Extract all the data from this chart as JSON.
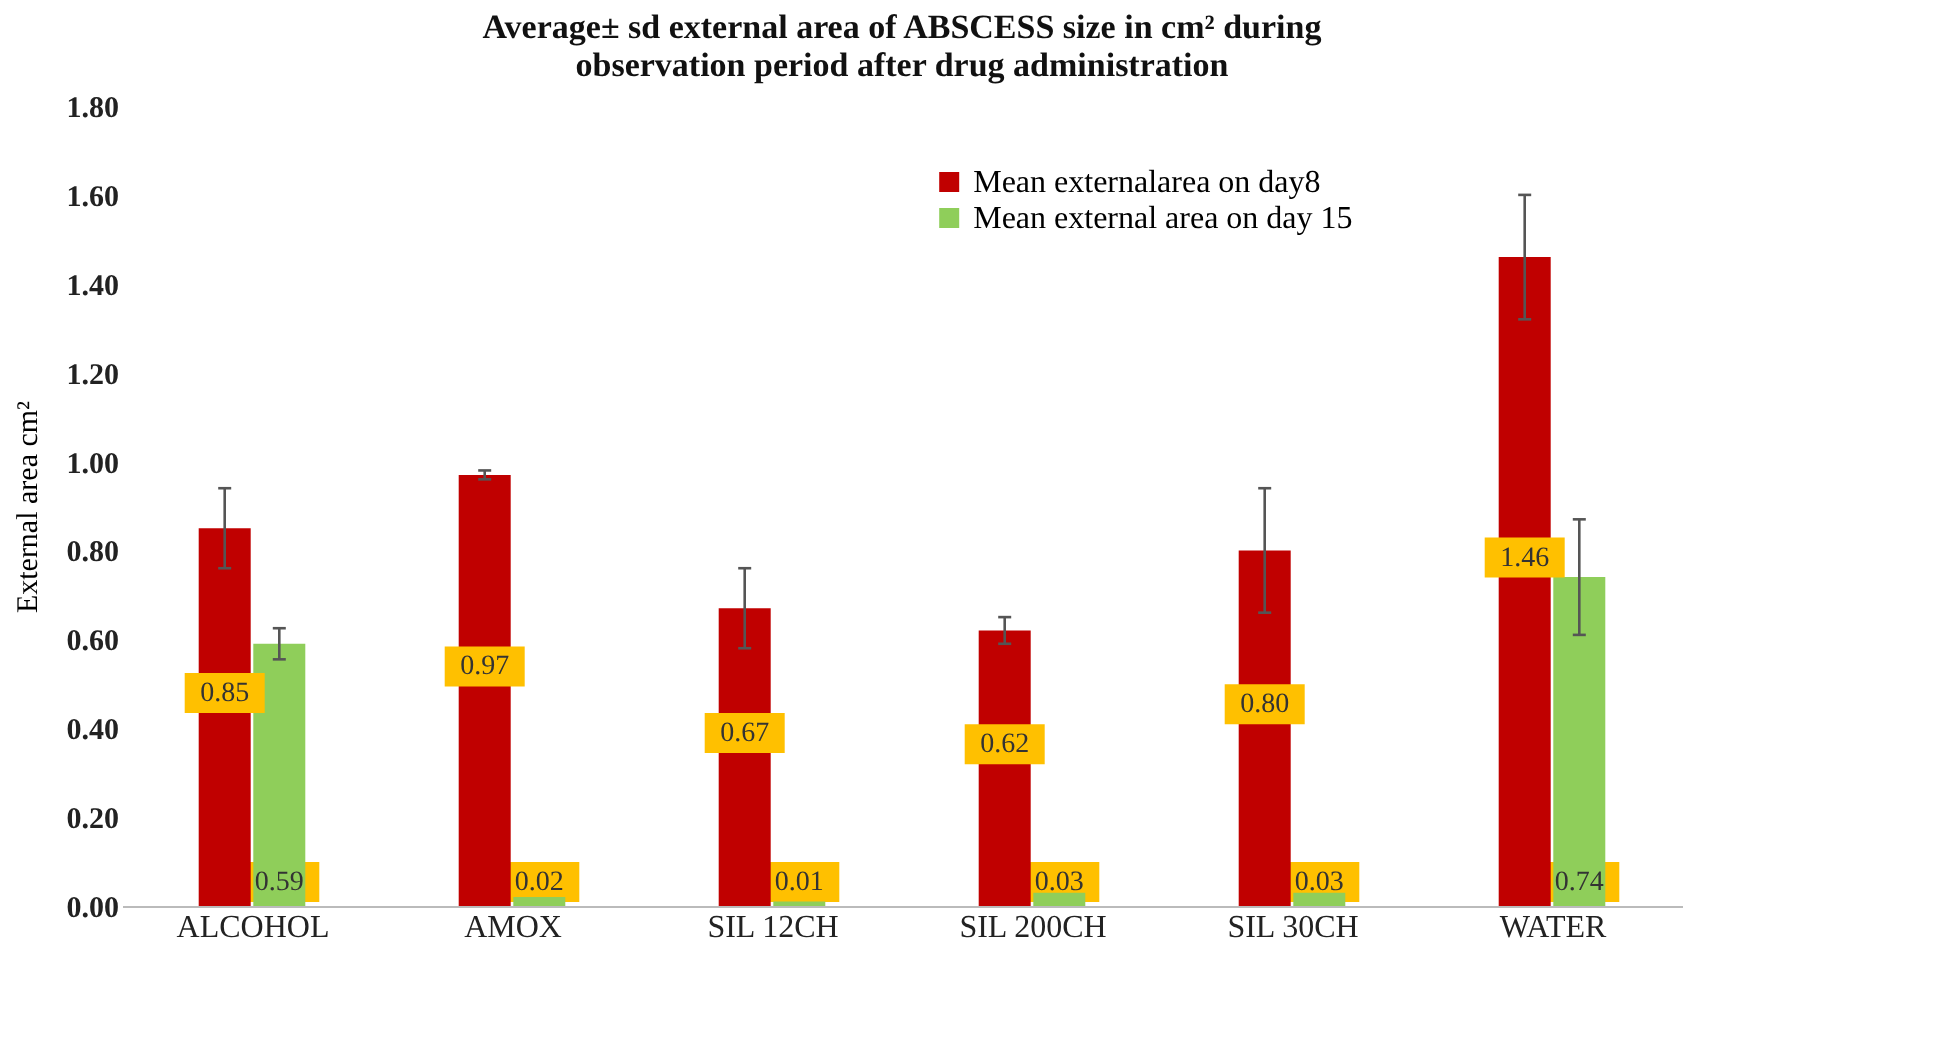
{
  "chart_data": {
    "type": "bar",
    "title": [
      "Average± sd external area of ABSCESS size in cm² during",
      "observation period after  drug administration"
    ],
    "ylabel": "External area cm²",
    "categories": [
      "ALCOHOL",
      "AMOX",
      "SIL 12CH",
      "SIL 200CH",
      "SIL 30CH",
      "WATER"
    ],
    "series": [
      {
        "name": "Mean externalarea on day8",
        "color": "#c00000",
        "values": [
          0.85,
          0.97,
          0.67,
          0.62,
          0.8,
          1.46
        ],
        "value_labels": [
          "0.85",
          "0.97",
          "0.67",
          "0.62",
          "0.80",
          "1.46"
        ],
        "errors": [
          0.09,
          0.01,
          0.09,
          0.03,
          0.14,
          0.14
        ]
      },
      {
        "name": "Mean external area on day 15",
        "color": "#8fce5a",
        "values": [
          0.59,
          0.02,
          0.01,
          0.03,
          0.03,
          0.74
        ],
        "value_labels": [
          "0.59",
          "0.02",
          "0.01",
          "0.03",
          "0.03",
          "0.74"
        ],
        "errors": [
          0.035,
          null,
          null,
          null,
          null,
          0.13
        ]
      }
    ],
    "ylim": [
      0,
      1.8
    ],
    "yticks": [
      {
        "value": 0,
        "label": "0.00"
      },
      {
        "value": 0.2,
        "label": "0.20"
      },
      {
        "value": 0.4,
        "label": "0.40"
      },
      {
        "value": 0.6,
        "label": "0.60"
      },
      {
        "value": 0.8,
        "label": "0.80"
      },
      {
        "value": 1.0,
        "label": "1.00"
      },
      {
        "value": 1.2,
        "label": "1.20"
      },
      {
        "value": 1.4,
        "label": "1.40"
      },
      {
        "value": 1.6,
        "label": "1.60"
      },
      {
        "value": 1.8,
        "label": "1.80"
      }
    ],
    "grid": false,
    "legend": "top right"
  }
}
